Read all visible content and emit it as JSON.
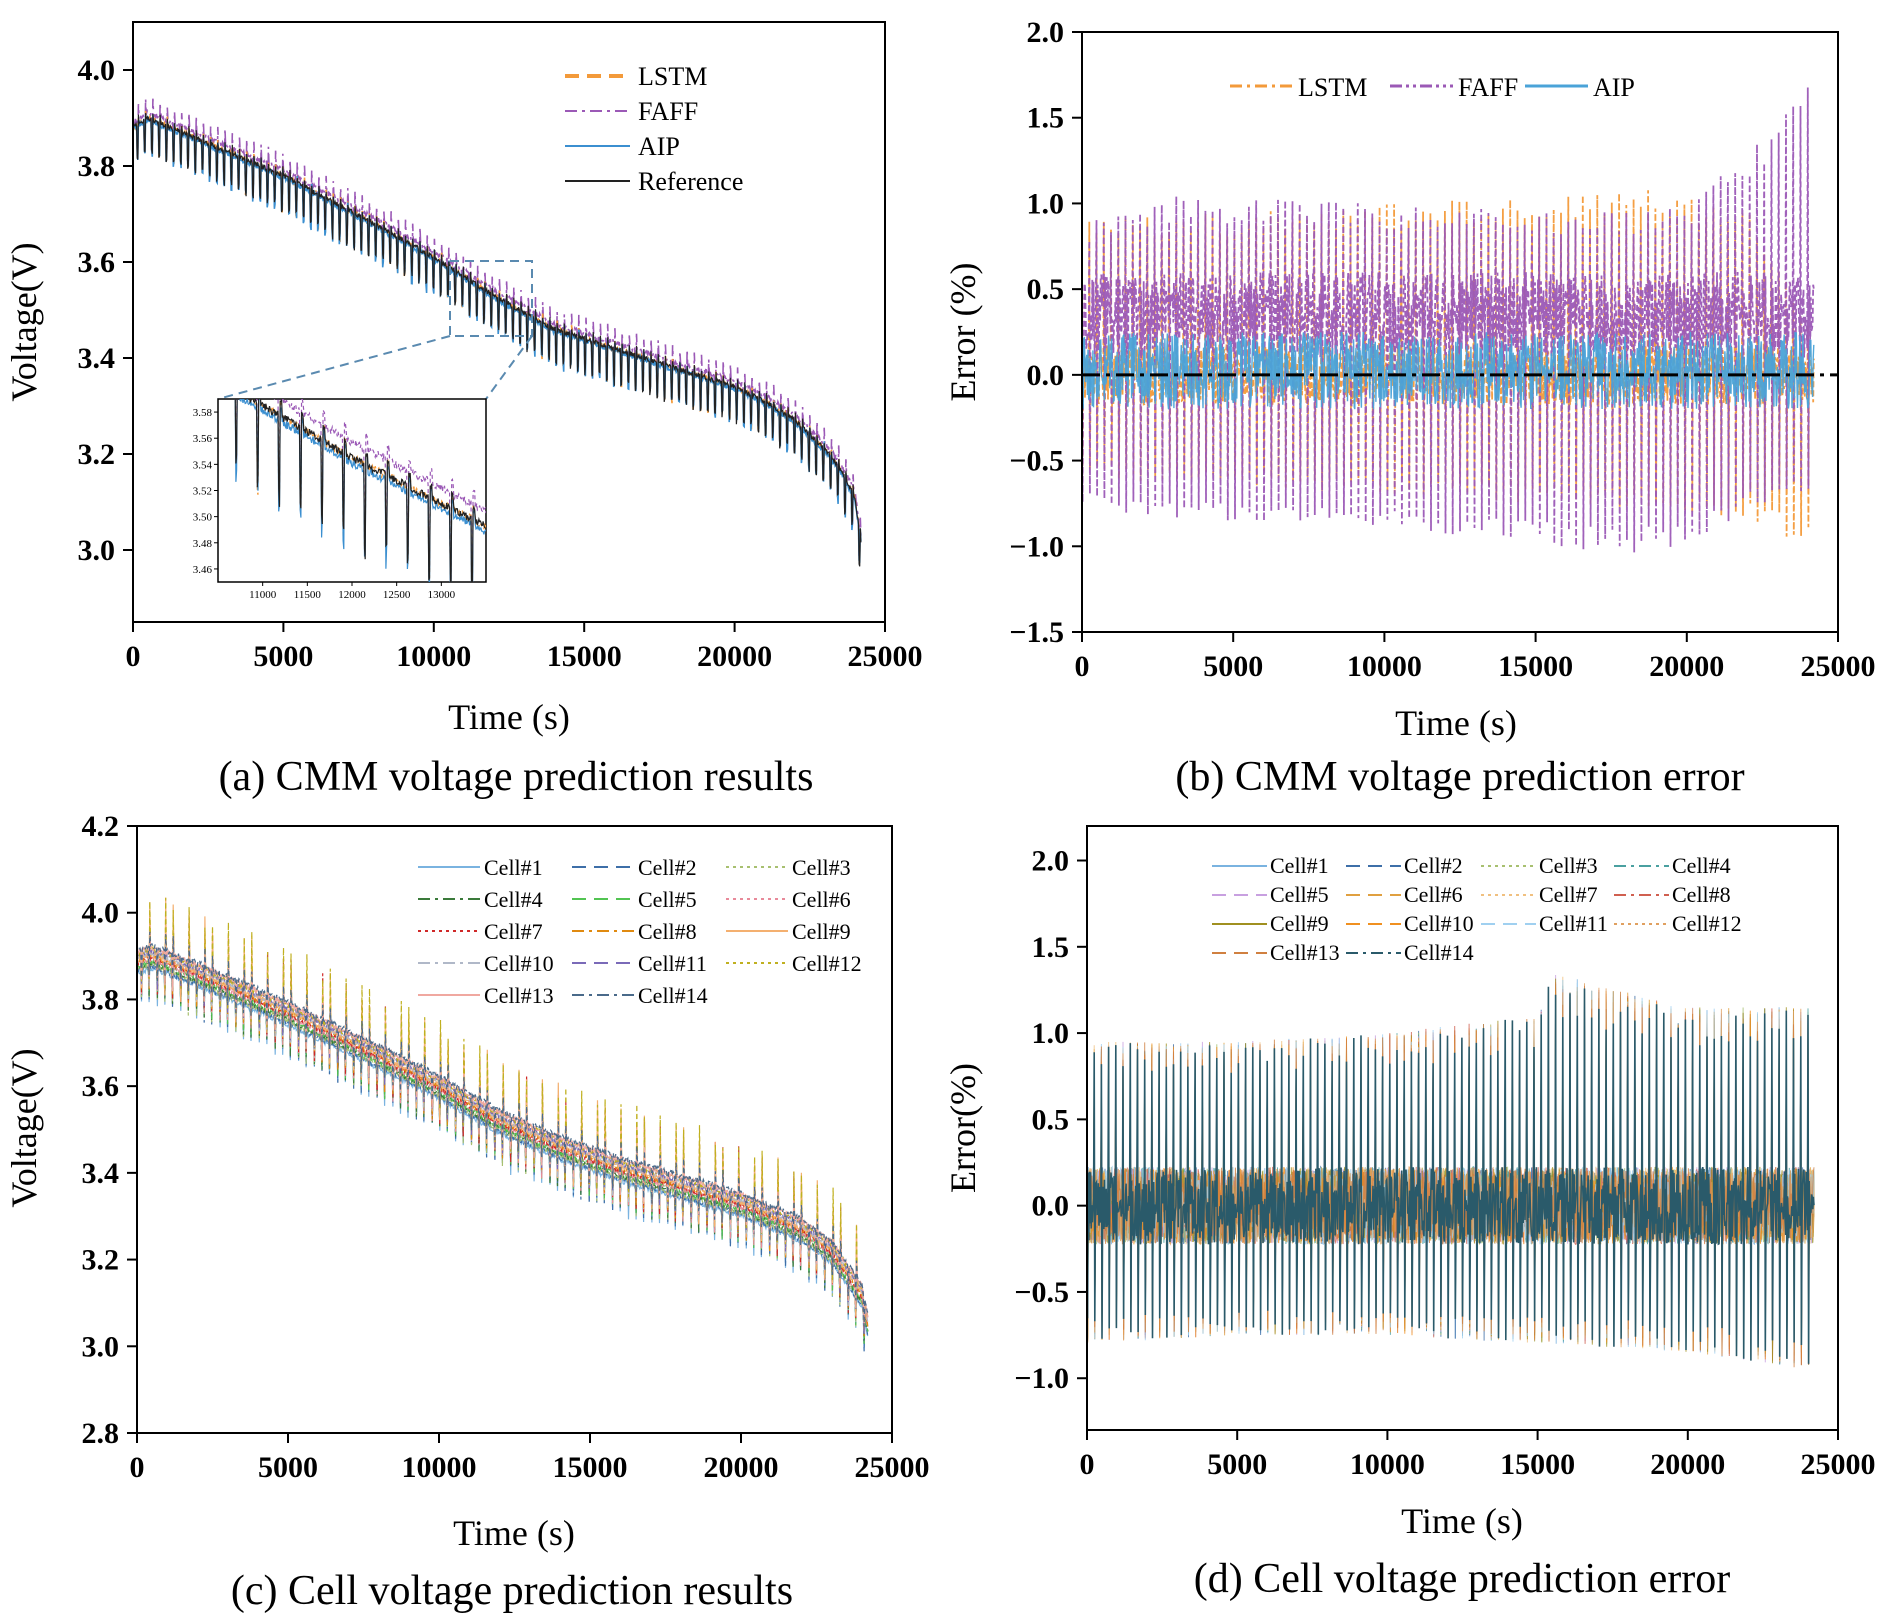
{
  "chart_data": [
    {
      "id": "a",
      "type": "line",
      "caption": "(a) CMM voltage prediction results",
      "xlabel": "Time (s)",
      "ylabel": "Voltage(V)",
      "xlim": [
        0,
        25000
      ],
      "ylim": [
        2.85,
        4.1
      ],
      "xticks": [
        0,
        5000,
        10000,
        15000,
        20000,
        25000
      ],
      "yticks": [
        3.0,
        3.2,
        3.4,
        3.6,
        3.8,
        4.0
      ],
      "series": [
        {
          "name": "LSTM",
          "color": "#f39a3a",
          "style": "dashed",
          "offset": 0.0
        },
        {
          "name": "FAFF",
          "color": "#9b59b6",
          "style": "dashdot",
          "offset": 0.012
        },
        {
          "name": "AIP",
          "color": "#3b8fd0",
          "style": "solid",
          "offset": -0.004
        },
        {
          "name": "Reference",
          "color": "#222222",
          "style": "solid",
          "offset": 0.0
        }
      ],
      "baseline": {
        "x": [
          0,
          500,
          2000,
          5000,
          8000,
          10000,
          12000,
          14000,
          16000,
          18000,
          20000,
          21000,
          22000,
          23000,
          23500,
          24000,
          24200
        ],
        "y": [
          3.88,
          3.9,
          3.86,
          3.78,
          3.68,
          3.61,
          3.53,
          3.46,
          3.42,
          3.38,
          3.34,
          3.31,
          3.27,
          3.21,
          3.17,
          3.11,
          3.02
        ]
      },
      "inset": {
        "xlim": [
          10500,
          13500
        ],
        "ylim": [
          3.45,
          3.59
        ],
        "xticks": [
          11000,
          11500,
          12000,
          12500,
          13000
        ],
        "yticks": [
          3.46,
          3.48,
          3.5,
          3.52,
          3.54,
          3.56,
          3.58
        ]
      }
    },
    {
      "id": "b",
      "type": "line",
      "caption": "(b) CMM voltage prediction error",
      "xlabel": "Time (s)",
      "ylabel": "Error (%)",
      "xlim": [
        0,
        25000
      ],
      "ylim": [
        -1.5,
        2.0
      ],
      "xticks": [
        0,
        5000,
        10000,
        15000,
        20000,
        25000
      ],
      "yticks": [
        -1.5,
        -1.0,
        -0.5,
        0.0,
        0.5,
        1.0,
        1.5,
        2.0
      ],
      "ytick_labels": [
        "−1.5",
        "−1.0",
        "−0.5",
        "0.0",
        "0.5",
        "1.0",
        "1.5",
        "2.0"
      ],
      "series": [
        {
          "name": "LSTM",
          "color": "#f39a3a",
          "style": "dashdot"
        },
        {
          "name": "FAFF",
          "color": "#9b59b6",
          "style": "dashdotdot"
        },
        {
          "name": "AIP",
          "color": "#4aa3d8",
          "style": "solid"
        }
      ],
      "envelopes": {
        "LSTM": {
          "x": [
            0,
            5000,
            10000,
            15000,
            18000,
            20000,
            22000,
            24000
          ],
          "upper": [
            0.9,
            0.95,
            1.0,
            1.05,
            1.1,
            1.05,
            1.0,
            0.3
          ],
          "lower": [
            -0.6,
            -0.65,
            -0.7,
            -0.75,
            -0.8,
            -0.8,
            -0.85,
            -1.0
          ]
        },
        "FAFF": {
          "x": [
            0,
            3000,
            10000,
            15000,
            18000,
            20000,
            22000,
            24000
          ],
          "upper": [
            0.9,
            1.05,
            1.0,
            0.95,
            0.95,
            1.0,
            1.3,
            1.7
          ],
          "lower": [
            -0.8,
            -0.85,
            -0.9,
            -1.0,
            -1.05,
            -1.0,
            -0.8,
            -0.7
          ]
        },
        "AIP": {
          "x": [
            0,
            24000
          ],
          "upper": [
            0.25,
            0.25
          ],
          "lower": [
            -0.2,
            -0.2
          ]
        }
      }
    },
    {
      "id": "c",
      "type": "line",
      "caption": "(c) Cell voltage prediction results",
      "xlabel": "Time (s)",
      "ylabel": "Voltage(V)",
      "xlim": [
        0,
        25000
      ],
      "ylim": [
        2.8,
        4.2
      ],
      "xticks": [
        0,
        5000,
        10000,
        15000,
        20000,
        25000
      ],
      "yticks": [
        2.8,
        3.0,
        3.2,
        3.4,
        3.6,
        3.8,
        4.0,
        4.2
      ],
      "series": [
        {
          "name": "Cell#1",
          "color": "#7ab3e0",
          "style": "solid"
        },
        {
          "name": "Cell#2",
          "color": "#3e6fa8",
          "style": "dashed"
        },
        {
          "name": "Cell#3",
          "color": "#a8c070",
          "style": "dotted"
        },
        {
          "name": "Cell#4",
          "color": "#3a7a3a",
          "style": "dashdot"
        },
        {
          "name": "Cell#5",
          "color": "#52c452",
          "style": "dashed"
        },
        {
          "name": "Cell#6",
          "color": "#e88a9a",
          "style": "dotted"
        },
        {
          "name": "Cell#7",
          "color": "#d02828",
          "style": "dotted"
        },
        {
          "name": "Cell#8",
          "color": "#e08a10",
          "style": "dashdot"
        },
        {
          "name": "Cell#9",
          "color": "#f4b070",
          "style": "solid"
        },
        {
          "name": "Cell#10",
          "color": "#b0b8c8",
          "style": "dashdot"
        },
        {
          "name": "Cell#11",
          "color": "#7a6ab8",
          "style": "dashed"
        },
        {
          "name": "Cell#12",
          "color": "#c0b020",
          "style": "dotted"
        },
        {
          "name": "Cell#13",
          "color": "#f0a8a0",
          "style": "solid"
        },
        {
          "name": "Cell#14",
          "color": "#4a6a8a",
          "style": "dashdot"
        }
      ],
      "baseline": {
        "x": [
          0,
          500,
          2000,
          5000,
          8000,
          10000,
          12000,
          14000,
          16000,
          18000,
          20000,
          21000,
          22000,
          23000,
          24000,
          24200
        ],
        "y": [
          3.89,
          3.9,
          3.86,
          3.77,
          3.67,
          3.6,
          3.52,
          3.46,
          3.41,
          3.37,
          3.33,
          3.3,
          3.27,
          3.22,
          3.12,
          3.05
        ]
      }
    },
    {
      "id": "d",
      "type": "line",
      "caption": "(d) Cell voltage prediction error",
      "xlabel": "Time (s)",
      "ylabel": "Error(%)",
      "xlim": [
        0,
        25000
      ],
      "ylim": [
        -1.3,
        2.2
      ],
      "xticks": [
        0,
        5000,
        10000,
        15000,
        20000,
        25000
      ],
      "yticks": [
        -1.0,
        -0.5,
        0.0,
        0.5,
        1.0,
        1.5,
        2.0
      ],
      "ytick_labels": [
        "−1.0",
        "−0.5",
        "0.0",
        "0.5",
        "1.0",
        "1.5",
        "2.0"
      ],
      "series": [
        {
          "name": "Cell#1",
          "color": "#7ab3e0",
          "style": "solid"
        },
        {
          "name": "Cell#2",
          "color": "#3e6fa8",
          "style": "dashed"
        },
        {
          "name": "Cell#3",
          "color": "#a8c070",
          "style": "dotted"
        },
        {
          "name": "Cell#4",
          "color": "#4aa0a0",
          "style": "dashdot"
        },
        {
          "name": "Cell#5",
          "color": "#c8a0e0",
          "style": "dashed"
        },
        {
          "name": "Cell#6",
          "color": "#e0a040",
          "style": "dashed"
        },
        {
          "name": "Cell#7",
          "color": "#f0c080",
          "style": "dotted"
        },
        {
          "name": "Cell#8",
          "color": "#d06050",
          "style": "dashdot"
        },
        {
          "name": "Cell#9",
          "color": "#a09020",
          "style": "solid"
        },
        {
          "name": "Cell#10",
          "color": "#f09020",
          "style": "dashed"
        },
        {
          "name": "Cell#11",
          "color": "#a0d0f0",
          "style": "dashed"
        },
        {
          "name": "Cell#12",
          "color": "#e0a060",
          "style": "dotted"
        },
        {
          "name": "Cell#13",
          "color": "#d08040",
          "style": "dashed"
        },
        {
          "name": "Cell#14",
          "color": "#2a5a6a",
          "style": "dashdot"
        }
      ],
      "envelopes": {
        "all": {
          "x": [
            0,
            5000,
            10000,
            15000,
            15500,
            20000,
            24000
          ],
          "upper": [
            0.95,
            0.95,
            1.0,
            1.1,
            1.35,
            1.15,
            1.15
          ],
          "lower": [
            -0.8,
            -0.75,
            -0.75,
            -0.8,
            -0.8,
            -0.85,
            -0.95
          ]
        }
      }
    }
  ]
}
